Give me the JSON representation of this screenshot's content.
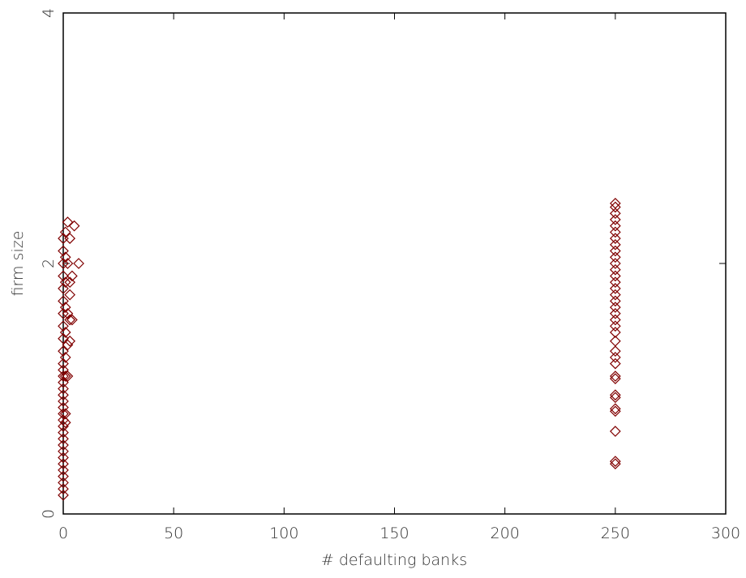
{
  "chart_data": {
    "type": "scatter",
    "x_label": "# defaulting banks",
    "y_label": "firm size",
    "x": [
      0,
      0,
      0,
      0,
      0,
      0,
      0,
      0,
      0,
      0,
      0,
      0,
      0,
      0,
      0,
      0,
      0,
      0,
      0,
      0,
      0,
      0,
      0,
      0,
      0,
      0,
      0,
      0,
      0,
      0,
      0,
      0,
      1,
      1,
      1,
      1,
      1,
      1,
      1,
      1,
      1,
      2,
      2,
      2,
      2,
      2,
      3,
      3,
      3,
      3,
      3,
      4,
      4,
      5,
      7,
      250,
      250,
      250,
      250,
      250,
      250,
      250,
      250,
      250,
      250,
      250,
      250,
      250,
      250,
      250,
      250,
      250,
      250,
      250,
      250,
      250,
      250,
      250,
      250,
      250,
      250,
      250,
      250,
      250,
      250,
      250,
      250,
      250,
      250,
      250
    ],
    "y": [
      0.15,
      0.2,
      0.25,
      0.3,
      0.35,
      0.4,
      0.45,
      0.5,
      0.55,
      0.6,
      0.65,
      0.7,
      0.75,
      0.8,
      0.85,
      0.9,
      0.95,
      1.0,
      1.05,
      1.1,
      1.15,
      1.2,
      1.3,
      1.4,
      1.5,
      1.6,
      1.7,
      1.8,
      1.9,
      2.0,
      2.1,
      2.2,
      0.73,
      0.8,
      1.1,
      1.25,
      1.45,
      1.65,
      1.85,
      2.05,
      2.25,
      2.33,
      2.0,
      1.6,
      1.35,
      1.1,
      1.38,
      1.55,
      1.75,
      1.85,
      2.2,
      1.55,
      1.9,
      2.3,
      2.0,
      0.4,
      0.42,
      0.66,
      0.82,
      0.84,
      0.93,
      0.95,
      1.08,
      1.1,
      1.2,
      1.25,
      1.3,
      1.38,
      1.45,
      1.5,
      1.55,
      1.6,
      1.65,
      1.7,
      1.75,
      1.8,
      1.85,
      1.9,
      1.95,
      2.0,
      2.05,
      2.1,
      2.15,
      2.2,
      2.25,
      2.3,
      2.35,
      2.4,
      2.45,
      2.48
    ],
    "color": "#800000",
    "xlim": [
      0,
      300
    ],
    "xticks": [
      0,
      50,
      100,
      150,
      200,
      250,
      300
    ],
    "ylim": [
      0,
      4
    ],
    "yticks": [
      0,
      2,
      4
    ]
  }
}
